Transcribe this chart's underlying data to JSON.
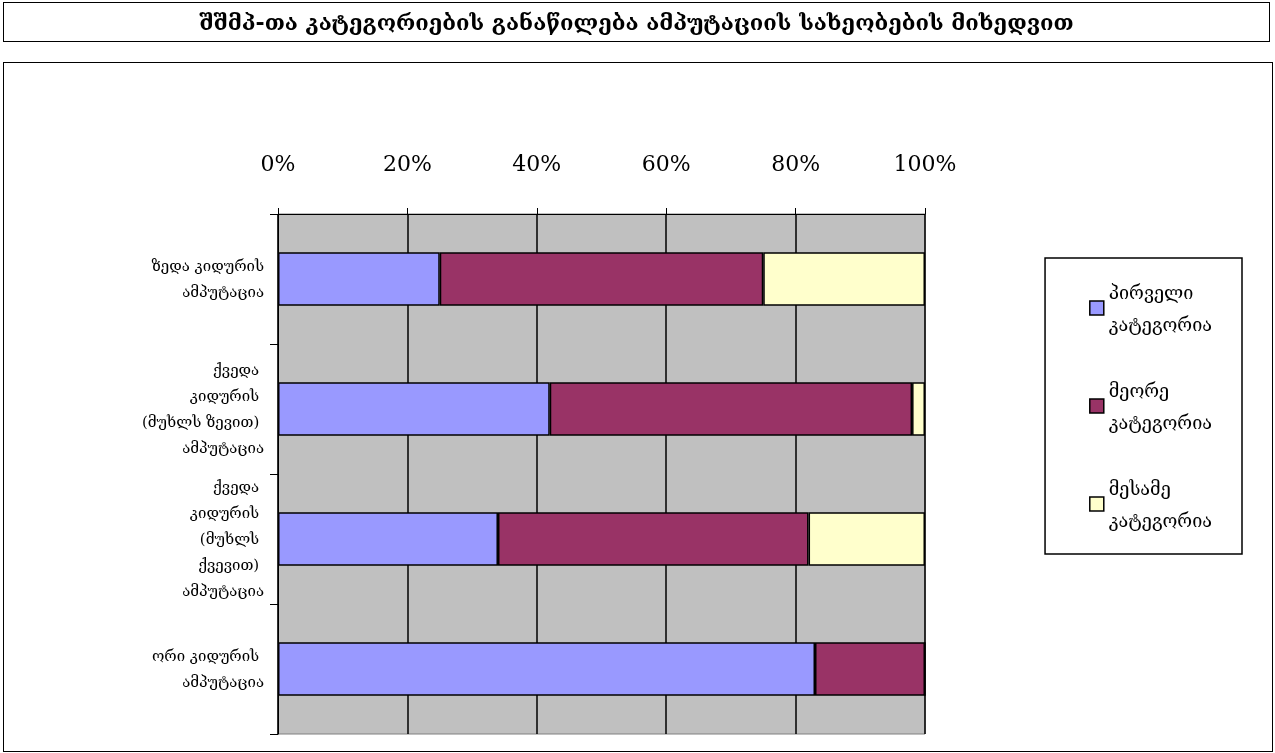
{
  "chart_data": {
    "type": "bar",
    "orientation": "horizontal",
    "stacked": true,
    "title": "შშმპ-თა კატეგორიების განაწილება ამპუტაციის სახეობების მიხედვით",
    "categories": [
      "ზედა კიდურის ამპუტაცია",
      "ქვედა კიდურის (მუხლს ზევით) ამპუტაცია",
      "ქვედა კიდურის (მუხლს ქვევით) ამპუტაცია",
      "ორი კიდურის ამპუტაცია"
    ],
    "series": [
      {
        "name": "პირველი კატეგორია",
        "color": "#9999ff",
        "values": [
          25,
          42,
          34,
          83
        ]
      },
      {
        "name": "მეორე კატეგორია",
        "color": "#993366",
        "values": [
          50,
          56,
          48,
          17
        ]
      },
      {
        "name": "მესამე კატეგორია",
        "color": "#ffffcc",
        "values": [
          25,
          2,
          18,
          0
        ]
      }
    ],
    "xlim": [
      0,
      100
    ],
    "xticks": [
      {
        "value": 0,
        "label": "0%"
      },
      {
        "value": 20,
        "label": "20%"
      },
      {
        "value": 40,
        "label": "40%"
      },
      {
        "value": 60,
        "label": "60%"
      },
      {
        "value": 80,
        "label": "80%"
      },
      {
        "value": 100,
        "label": "100%"
      }
    ],
    "grid": "x",
    "legend": "right"
  }
}
